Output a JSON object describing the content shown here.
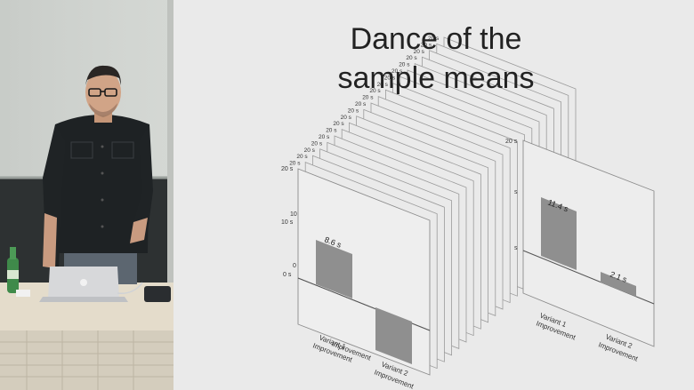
{
  "slide": {
    "title_line1": "Dance of the",
    "title_line2": "sample means",
    "stack_tick_label": "20 s",
    "front_chart": {
      "y_ticks": [
        "20 s",
        "10",
        "10 s",
        "0",
        "0 s"
      ],
      "bar_value_label": "8.6 s",
      "bar_category": "Variant 1",
      "bar_category_sub": "Improvement",
      "overlay_category": "Variant 2",
      "overlay_category_sub": "Improvement"
    },
    "right_chart": {
      "top_tick": "20 s",
      "mid_tick": "s",
      "low_tick": "s",
      "bar1_value_label": "11.4 s",
      "bar2_value_label": "2.1 s",
      "cat1_line1": "Variant 1",
      "cat1_line2": "Improvement",
      "cat2_line1": "Variant 2",
      "cat2_line2": "Improvement"
    }
  },
  "colors": {
    "slide_bg": "#eaeaea",
    "bar_fill": "#8f8f8f",
    "room_wall": "#2e3233",
    "whiteboard": "#cfd3cf",
    "shirt": "#1e2224",
    "laptop": "#d6d7d9"
  }
}
